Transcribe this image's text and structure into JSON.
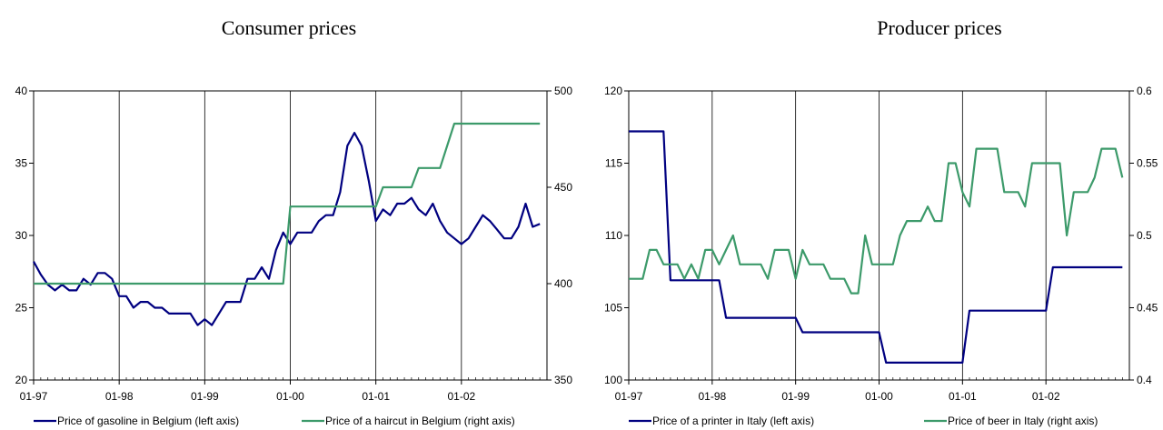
{
  "chart_data": [
    {
      "type": "line",
      "title": "Consumer prices",
      "x_labels": [
        "01-97",
        "01-98",
        "01-99",
        "01-00",
        "01-01",
        "01-02"
      ],
      "x_range": [
        "1997-01",
        "2002-12"
      ],
      "y_left": {
        "min": 20,
        "max": 40,
        "ticks": [
          20,
          25,
          30,
          35,
          40
        ]
      },
      "y_right": {
        "min": 350,
        "max": 500,
        "ticks": [
          350,
          400,
          450,
          500
        ]
      },
      "grid": "vertical lines at year starts",
      "legend_position": "bottom",
      "series": [
        {
          "name": "Price of gasoline in Belgium (left axis)",
          "axis": "left",
          "color": "#000080",
          "x": [
            "1997-01",
            "1997-02",
            "1997-03",
            "1997-04",
            "1997-05",
            "1997-06",
            "1997-07",
            "1997-08",
            "1997-09",
            "1997-10",
            "1997-11",
            "1997-12",
            "1998-01",
            "1998-02",
            "1998-03",
            "1998-04",
            "1998-05",
            "1998-06",
            "1998-07",
            "1998-08",
            "1998-09",
            "1998-10",
            "1998-11",
            "1998-12",
            "1999-01",
            "1999-02",
            "1999-03",
            "1999-04",
            "1999-05",
            "1999-06",
            "1999-07",
            "1999-08",
            "1999-09",
            "1999-10",
            "1999-11",
            "1999-12",
            "2000-01",
            "2000-02",
            "2000-03",
            "2000-04",
            "2000-05",
            "2000-06",
            "2000-07",
            "2000-08",
            "2000-09",
            "2000-10",
            "2000-11",
            "2000-12",
            "2001-01",
            "2001-02",
            "2001-03",
            "2001-04",
            "2001-05",
            "2001-06",
            "2001-07",
            "2001-08",
            "2001-09",
            "2001-10",
            "2001-11",
            "2001-12",
            "2002-01",
            "2002-02",
            "2002-03",
            "2002-04",
            "2002-05",
            "2002-06",
            "2002-07",
            "2002-08",
            "2002-09",
            "2002-10",
            "2002-11",
            "2002-12"
          ],
          "y": [
            28.2,
            27.3,
            26.6,
            26.2,
            26.6,
            26.2,
            26.2,
            27.0,
            26.6,
            27.4,
            27.4,
            27.0,
            25.8,
            25.8,
            25.0,
            25.4,
            25.4,
            25.0,
            25.0,
            24.6,
            24.6,
            24.6,
            24.6,
            23.8,
            24.2,
            23.8,
            24.6,
            25.4,
            25.4,
            25.4,
            27.0,
            27.0,
            27.8,
            27.0,
            29.0,
            30.2,
            29.4,
            30.2,
            30.2,
            30.2,
            31.0,
            31.4,
            31.4,
            33.0,
            36.2,
            37.1,
            36.2,
            33.8,
            31.0,
            31.8,
            31.4,
            32.2,
            32.2,
            32.6,
            31.8,
            31.4,
            32.2,
            31.0,
            30.2,
            29.8,
            29.4,
            29.8,
            30.6,
            31.4,
            31.0,
            30.4,
            29.8,
            29.8,
            30.6,
            32.2,
            30.6,
            30.8
          ]
        },
        {
          "name": "Price of a haircut in Belgium (right axis)",
          "axis": "right",
          "color": "#3C9A6A",
          "x": [
            "1997-01",
            "1999-12",
            "2000-01",
            "2000-12",
            "2001-01",
            "2001-02",
            "2001-06",
            "2001-07",
            "2001-10",
            "2001-12",
            "2002-01",
            "2002-12"
          ],
          "y": [
            400,
            400,
            440,
            440,
            440,
            450,
            450,
            460,
            460,
            483,
            483,
            483
          ]
        }
      ]
    },
    {
      "type": "line",
      "title": "Producer prices",
      "x_labels": [
        "01-97",
        "01-98",
        "01-99",
        "01-00",
        "01-01",
        "01-02"
      ],
      "x_range": [
        "1997-01",
        "2002-12"
      ],
      "y_left": {
        "min": 100,
        "max": 120,
        "ticks": [
          100,
          105,
          110,
          115,
          120
        ]
      },
      "y_right": {
        "min": 0.4,
        "max": 0.6,
        "ticks": [
          0.4,
          0.45,
          0.5,
          0.55,
          0.6
        ]
      },
      "grid": "vertical lines at year starts",
      "legend_position": "bottom",
      "series": [
        {
          "name": "Price of a printer in Italy (left axis)",
          "axis": "left",
          "color": "#000080",
          "x": [
            "1997-01",
            "1997-06",
            "1997-07",
            "1998-01",
            "1998-02",
            "1998-03",
            "1998-12",
            "1999-01",
            "1999-02",
            "1999-12",
            "2000-01",
            "2000-02",
            "2000-12",
            "2001-01",
            "2001-02",
            "2001-03",
            "2001-12",
            "2002-01",
            "2002-02",
            "2002-12"
          ],
          "y": [
            117.2,
            117.2,
            106.9,
            106.9,
            106.9,
            104.3,
            104.3,
            104.3,
            103.3,
            103.3,
            103.3,
            101.2,
            101.2,
            101.2,
            104.8,
            104.8,
            104.8,
            104.8,
            107.8,
            107.8
          ]
        },
        {
          "name": "Price of beer in Italy (right axis)",
          "axis": "right",
          "color": "#3C9A6A",
          "x": [
            "1997-01",
            "1997-02",
            "1997-03",
            "1997-04",
            "1997-05",
            "1997-06",
            "1997-07",
            "1997-08",
            "1997-09",
            "1997-10",
            "1997-11",
            "1997-12",
            "1998-01",
            "1998-02",
            "1998-03",
            "1998-04",
            "1998-05",
            "1998-06",
            "1998-07",
            "1998-08",
            "1998-09",
            "1998-10",
            "1998-11",
            "1998-12",
            "1999-01",
            "1999-02",
            "1999-03",
            "1999-04",
            "1999-05",
            "1999-06",
            "1999-07",
            "1999-08",
            "1999-09",
            "1999-10",
            "1999-11",
            "1999-12",
            "2000-01",
            "2000-02",
            "2000-03",
            "2000-04",
            "2000-05",
            "2000-06",
            "2000-07",
            "2000-08",
            "2000-09",
            "2000-10",
            "2000-11",
            "2000-12",
            "2001-01",
            "2001-02",
            "2001-03",
            "2001-04",
            "2001-05",
            "2001-06",
            "2001-07",
            "2001-08",
            "2001-09",
            "2001-10",
            "2001-11",
            "2001-12",
            "2002-01",
            "2002-02",
            "2002-03",
            "2002-04",
            "2002-05",
            "2002-06",
            "2002-07",
            "2002-08",
            "2002-09",
            "2002-10",
            "2002-11",
            "2002-12"
          ],
          "y": [
            0.47,
            0.47,
            0.47,
            0.49,
            0.49,
            0.48,
            0.48,
            0.48,
            0.47,
            0.48,
            0.47,
            0.49,
            0.49,
            0.48,
            0.49,
            0.5,
            0.48,
            0.48,
            0.48,
            0.48,
            0.47,
            0.49,
            0.49,
            0.49,
            0.47,
            0.49,
            0.48,
            0.48,
            0.48,
            0.47,
            0.47,
            0.47,
            0.46,
            0.46,
            0.5,
            0.48,
            0.48,
            0.48,
            0.48,
            0.5,
            0.51,
            0.51,
            0.51,
            0.52,
            0.51,
            0.51,
            0.55,
            0.55,
            0.53,
            0.52,
            0.56,
            0.56,
            0.56,
            0.56,
            0.53,
            0.53,
            0.53,
            0.52,
            0.55,
            0.55,
            0.55,
            0.55,
            0.55,
            0.5,
            0.53,
            0.53,
            0.53,
            0.54,
            0.56,
            0.56,
            0.56,
            0.54
          ]
        }
      ]
    }
  ]
}
